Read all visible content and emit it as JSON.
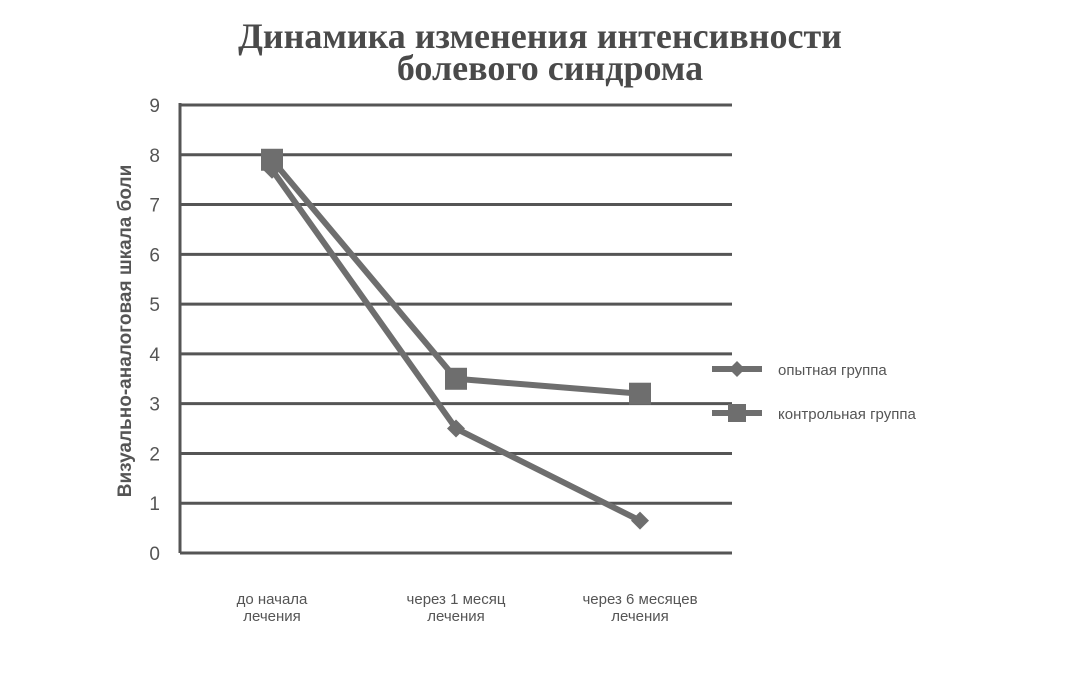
{
  "chart_data": {
    "type": "line",
    "title_lines": [
      "Динамика изменения интенсивности",
      "болевого синдрома"
    ],
    "xlabel": "",
    "ylabel": "Визуально-аналоговая   шкала боли",
    "ylim": [
      0,
      9
    ],
    "yticks": [
      0,
      1,
      2,
      3,
      4,
      5,
      6,
      7,
      8,
      9
    ],
    "grid": true,
    "legend_position": "right",
    "categories": [
      [
        "до начала",
        "лечения"
      ],
      [
        "через 1 месяц",
        "лечения"
      ],
      [
        "через 6 месяцев",
        "лечения"
      ]
    ],
    "series": [
      {
        "name": "опытная группа",
        "marker": "diamond",
        "color": "#6e6e6e",
        "values": [
          7.7,
          2.5,
          0.65
        ]
      },
      {
        "name": "контрольная группа",
        "marker": "square",
        "color": "#6e6e6e",
        "values": [
          7.9,
          3.5,
          3.2
        ]
      }
    ],
    "colors": {
      "grid": "#555555",
      "axis": "#555555",
      "text": "#555555",
      "title": "#4a4a4a"
    }
  }
}
